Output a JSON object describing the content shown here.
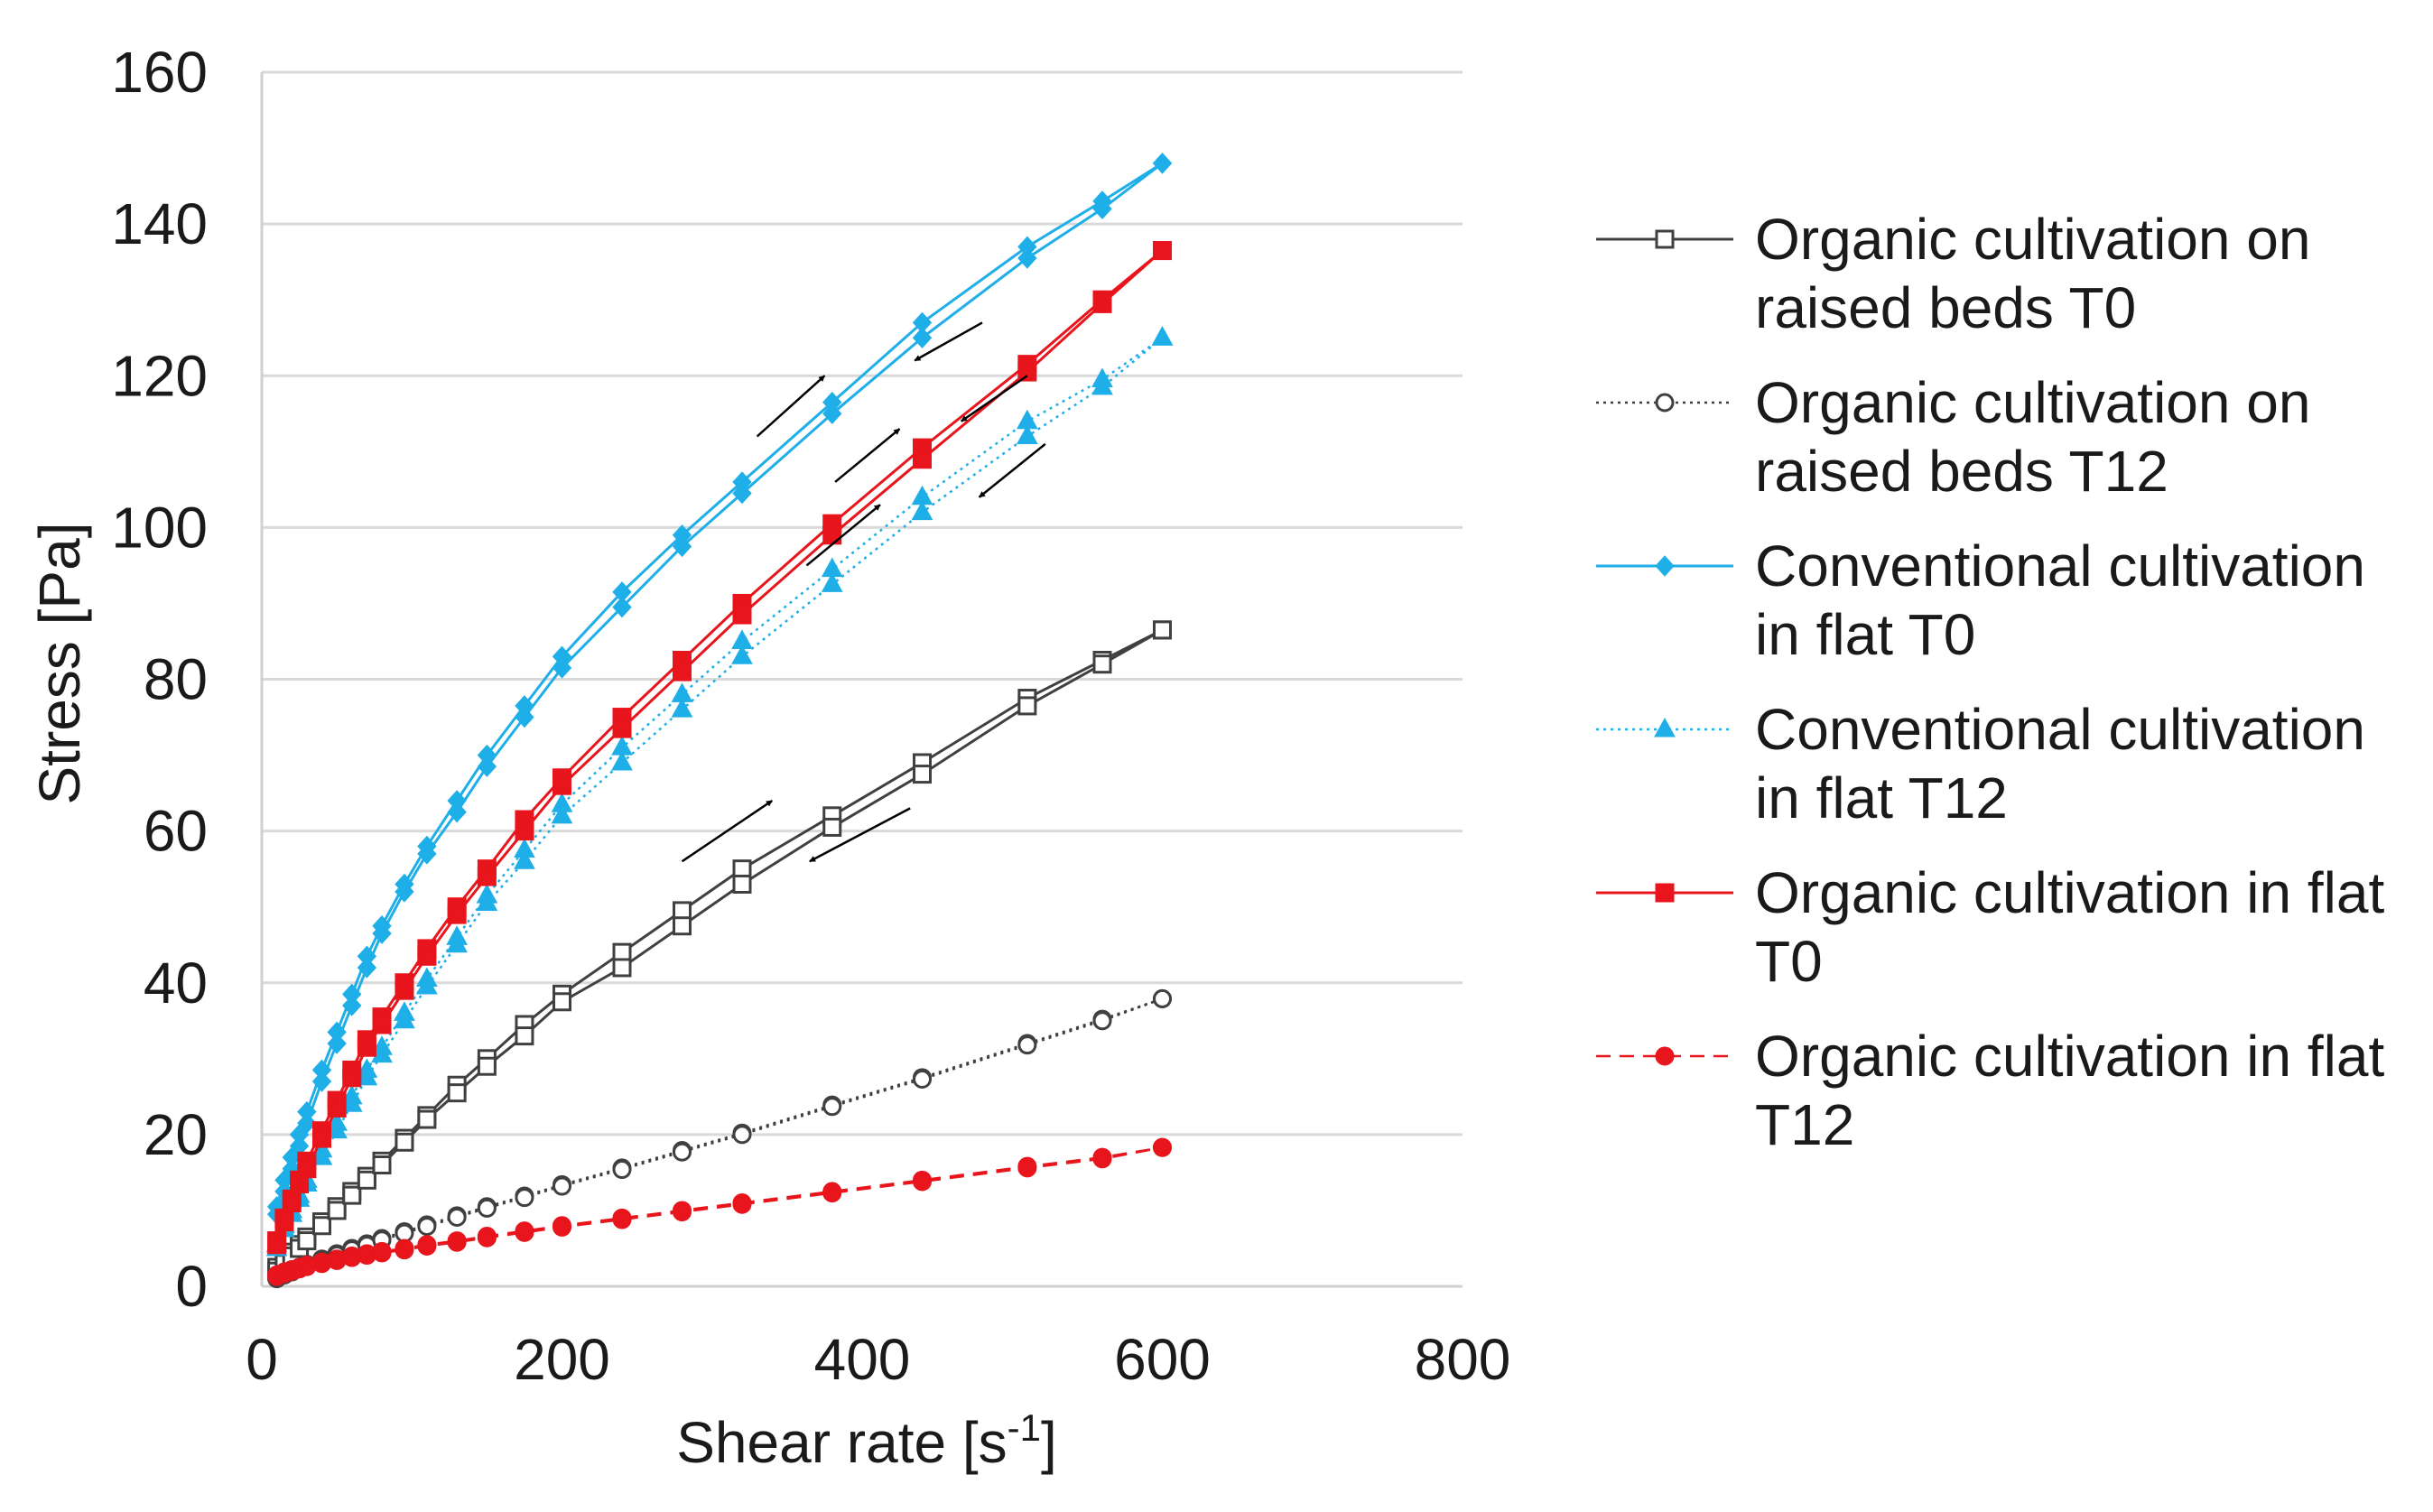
{
  "chart_data": {
    "type": "scatter",
    "title": "",
    "xlabel": "Shear rate [s",
    "xlabel_sup": "-1",
    "xlabel_end": "]",
    "ylabel": "Stress [Pa]",
    "xlim": [
      0,
      800
    ],
    "ylim": [
      0,
      160
    ],
    "xticks": [
      0,
      200,
      400,
      600,
      800
    ],
    "yticks": [
      0,
      20,
      40,
      60,
      80,
      100,
      120,
      140,
      160
    ],
    "grid": "horizontal",
    "legend_position": "right",
    "x": [
      10,
      15,
      20,
      25,
      30,
      40,
      50,
      60,
      70,
      80,
      95,
      110,
      130,
      150,
      175,
      200,
      240,
      280,
      320,
      380,
      440,
      510,
      560,
      600
    ],
    "series": [
      {
        "name": "Organic cultivation on raised beds T0",
        "legend_lines": [
          "Organic cultivation on",
          "raised beds T0"
        ],
        "color": "#404040",
        "marker": "square-open",
        "line": "solid",
        "up": [
          2.5,
          3.5,
          4.5,
          5.5,
          6.5,
          8.5,
          10.5,
          12.5,
          14.5,
          16.5,
          19.5,
          22.5,
          26.5,
          30,
          34.5,
          38.5,
          44,
          49.5,
          55,
          62,
          69,
          77.5,
          82.5,
          86.5
        ],
        "down": [
          2,
          3,
          4,
          5,
          6,
          8,
          10,
          12,
          14,
          16,
          19,
          22,
          25.5,
          29,
          33,
          37.5,
          42,
          47.5,
          53,
          60.5,
          67.5,
          76.5,
          82,
          86.5
        ]
      },
      {
        "name": "Organic cultivation on raised beds T12",
        "legend_lines": [
          "Organic cultivation on",
          "raised beds T12"
        ],
        "color": "#404040",
        "marker": "circle-open",
        "line": "dotted",
        "up": [
          1.2,
          1.7,
          2.1,
          2.5,
          2.9,
          3.6,
          4.3,
          5,
          5.6,
          6.3,
          7.2,
          8.1,
          9.3,
          10.5,
          11.9,
          13.4,
          15.6,
          17.9,
          20.2,
          23.9,
          27.5,
          32,
          35.2,
          37.9
        ],
        "down": [
          1,
          1.5,
          1.9,
          2.3,
          2.7,
          3.4,
          4.1,
          4.8,
          5.4,
          6.1,
          7,
          7.9,
          9.1,
          10.3,
          11.7,
          13.2,
          15.4,
          17.7,
          20,
          23.7,
          27.3,
          31.8,
          35,
          37.9
        ]
      },
      {
        "name": "Conventional cultivation in flat T0",
        "legend_lines": [
          "Conventional cultivation",
          "in flat T0"
        ],
        "color": "#1eaee8",
        "marker": "diamond",
        "line": "solid",
        "up": [
          10.5,
          14,
          17,
          20,
          23,
          28.5,
          33.5,
          38.5,
          43.5,
          47.5,
          53,
          58,
          64,
          70,
          76.5,
          83,
          91.5,
          99,
          106,
          116.5,
          127,
          137,
          143,
          148
        ],
        "down": [
          9.5,
          12.5,
          15.5,
          18.5,
          21.5,
          27,
          32,
          37,
          42,
          46.5,
          52,
          57,
          62.5,
          68.5,
          75,
          81.5,
          89.5,
          97.5,
          104.5,
          115,
          125,
          135.5,
          142,
          148
        ]
      },
      {
        "name": "Conventional cultivation in flat T12",
        "legend_lines": [
          "Conventional cultivation",
          "in flat T12"
        ],
        "color": "#1eaee8",
        "marker": "triangle",
        "line": "dotted",
        "up": [
          5.5,
          8,
          10,
          12,
          14,
          18,
          21.5,
          25,
          28.5,
          31.5,
          36,
          40.5,
          46,
          51.5,
          57.5,
          63.5,
          71,
          78,
          85,
          94.5,
          104,
          114,
          119.5,
          125
        ],
        "down": [
          5,
          7.5,
          9.5,
          11.5,
          13.5,
          17,
          20.5,
          24,
          27.5,
          30.5,
          35,
          39.5,
          45,
          50.5,
          56,
          62,
          69,
          76,
          83,
          92.5,
          102,
          112,
          118.5,
          125
        ]
      },
      {
        "name": "Organic cultivation in flat T0",
        "legend_lines": [
          "Organic cultivation in flat",
          "T0"
        ],
        "color": "#e8151c",
        "marker": "square",
        "line": "solid",
        "up": [
          6,
          9,
          11.5,
          14,
          16.5,
          20.5,
          24.5,
          28.5,
          32.5,
          35.5,
          40,
          44.5,
          50,
          55,
          61.5,
          67,
          75,
          82.5,
          90,
          100.5,
          110.5,
          121.5,
          130,
          136.5
        ],
        "down": [
          5.5,
          8.5,
          11,
          13.5,
          15.5,
          19.5,
          23.5,
          27.5,
          31.5,
          34.5,
          39,
          43.5,
          49,
          54,
          60,
          66,
          73.5,
          81,
          88.5,
          99,
          109,
          120.5,
          129.5,
          136.5
        ]
      },
      {
        "name": "Organic cultivation in flat T12",
        "legend_lines": [
          "Organic cultivation in flat",
          "T12"
        ],
        "color": "#e8151c",
        "marker": "circle",
        "line": "dashed",
        "up": [
          1.5,
          1.9,
          2.2,
          2.5,
          2.8,
          3.2,
          3.6,
          4,
          4.3,
          4.6,
          5,
          5.5,
          6,
          6.6,
          7.3,
          8,
          9,
          10,
          11,
          12.5,
          14,
          15.8,
          17,
          18.3
        ],
        "down": [
          1.3,
          1.7,
          2,
          2.3,
          2.6,
          3,
          3.4,
          3.8,
          4.1,
          4.4,
          4.8,
          5.3,
          5.8,
          6.4,
          7.1,
          7.8,
          8.8,
          9.8,
          10.8,
          12.3,
          13.8,
          15.6,
          16.8,
          18.3
        ]
      }
    ],
    "arrows": [
      {
        "series": "Conventional cultivation in flat T0",
        "from": [
          330,
          112
        ],
        "to": [
          375,
          120
        ]
      },
      {
        "series": "Conventional cultivation in flat T0",
        "from": [
          480,
          127
        ],
        "to": [
          435,
          122
        ]
      },
      {
        "series": "Organic cultivation in flat T0",
        "from": [
          382,
          106
        ],
        "to": [
          425,
          113
        ]
      },
      {
        "series": "Organic cultivation in flat T0",
        "from": [
          510,
          120
        ],
        "to": [
          466,
          114
        ]
      },
      {
        "series": "Conventional cultivation in flat T12",
        "from": [
          363,
          95
        ],
        "to": [
          412,
          103
        ]
      },
      {
        "series": "Conventional cultivation in flat T12",
        "from": [
          522,
          111
        ],
        "to": [
          478,
          104
        ]
      },
      {
        "series": "Organic cultivation on raised beds T0",
        "from": [
          280,
          56
        ],
        "to": [
          340,
          64
        ]
      },
      {
        "series": "Organic cultivation on raised beds T0",
        "from": [
          432,
          63
        ],
        "to": [
          365,
          56
        ]
      }
    ]
  }
}
